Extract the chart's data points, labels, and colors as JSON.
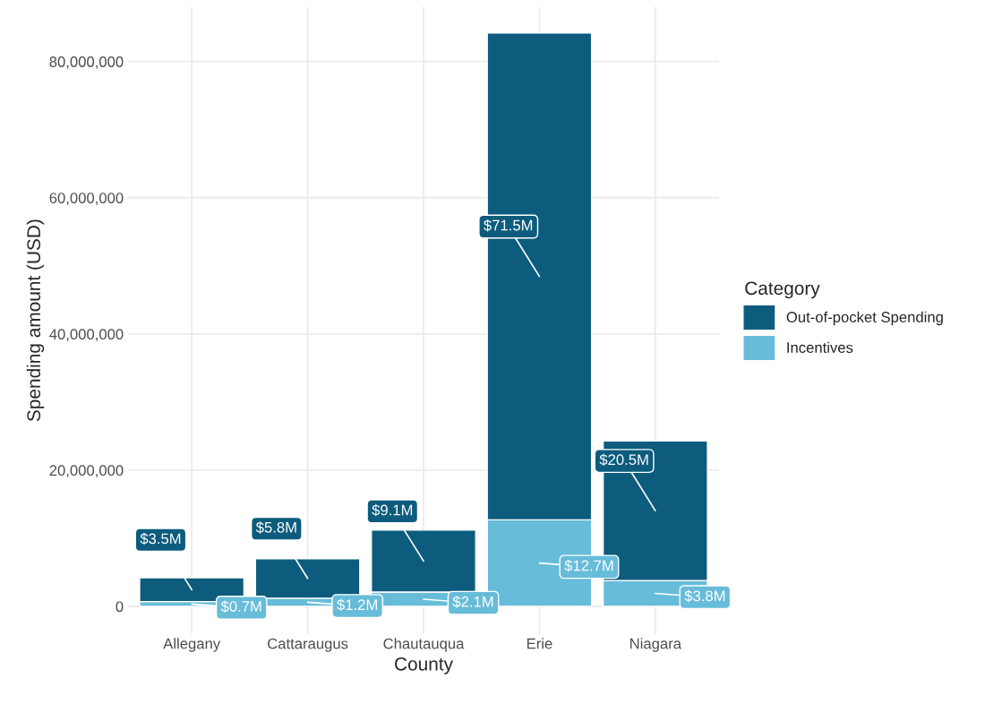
{
  "chart_data": {
    "type": "bar",
    "stacked": true,
    "xlabel": "County",
    "ylabel": "Spending amount (USD)",
    "legend_title": "Category",
    "legend": "right",
    "grid": true,
    "categories": [
      "Allegany",
      "Cattaraugus",
      "Chautauqua",
      "Erie",
      "Niagara"
    ],
    "ylim": [
      -4000000,
      88000000
    ],
    "yticks": [
      {
        "value": 0,
        "label": "0"
      },
      {
        "value": 20000000,
        "label": "20,000,000"
      },
      {
        "value": 40000000,
        "label": "40,000,000"
      },
      {
        "value": 60000000,
        "label": "60,000,000"
      },
      {
        "value": 80000000,
        "label": "80,000,000"
      }
    ],
    "series": [
      {
        "name": "Incentives",
        "color": "#67bcd9",
        "values": [
          700000,
          1200000,
          2100000,
          12700000,
          3800000
        ],
        "value_labels": [
          "$0.7M",
          "$1.2M",
          "$2.1M",
          "$12.7M",
          "$3.8M"
        ]
      },
      {
        "name": "Out-of-pocket Spending",
        "color": "#0d5c7d",
        "values": [
          3500000,
          5800000,
          9100000,
          71500000,
          20500000
        ],
        "value_labels": [
          "$3.5M",
          "$5.8M",
          "$9.1M",
          "$71.5M",
          "$20.5M"
        ]
      }
    ]
  }
}
